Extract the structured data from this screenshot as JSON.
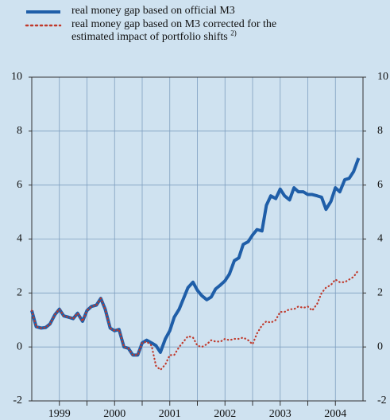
{
  "chart_data": {
    "type": "line",
    "legend_note": "2)",
    "x": [
      1999,
      1999.08,
      1999.17,
      1999.25,
      1999.33,
      1999.42,
      1999.5,
      1999.58,
      1999.67,
      1999.75,
      1999.83,
      1999.92,
      2000,
      2000.08,
      2000.17,
      2000.25,
      2000.33,
      2000.42,
      2000.5,
      2000.58,
      2000.67,
      2000.75,
      2000.83,
      2000.92,
      2001,
      2001.08,
      2001.17,
      2001.25,
      2001.33,
      2001.42,
      2001.5,
      2001.58,
      2001.67,
      2001.75,
      2001.83,
      2001.92,
      2002,
      2002.08,
      2002.17,
      2002.25,
      2002.33,
      2002.42,
      2002.5,
      2002.58,
      2002.67,
      2002.75,
      2002.83,
      2002.92,
      2003,
      2003.08,
      2003.17,
      2003.25,
      2003.33,
      2003.42,
      2003.5,
      2003.58,
      2003.67,
      2003.75,
      2003.83,
      2003.92,
      2004,
      2004.08,
      2004.17,
      2004.25,
      2004.33,
      2004.42,
      2004.5,
      2004.58,
      2004.67,
      2004.75,
      2004.83,
      2004.92
    ],
    "series": [
      {
        "name": "real money gap based on official M3",
        "color": "#1f5ea8",
        "style": "solid",
        "values": [
          1.35,
          0.75,
          0.7,
          0.72,
          0.85,
          1.2,
          1.4,
          1.15,
          1.1,
          1.05,
          1.25,
          0.95,
          1.35,
          1.5,
          1.55,
          1.8,
          1.4,
          0.7,
          0.6,
          0.65,
          0.0,
          -0.05,
          -0.3,
          -0.3,
          0.15,
          0.25,
          0.15,
          0.05,
          -0.2,
          0.3,
          0.6,
          1.1,
          1.4,
          1.8,
          2.2,
          2.4,
          2.1,
          1.9,
          1.75,
          1.85,
          2.15,
          2.3,
          2.45,
          2.7,
          3.2,
          3.3,
          3.8,
          3.9,
          4.15,
          4.35,
          4.3,
          5.25,
          5.6,
          5.5,
          5.85,
          5.6,
          5.45,
          5.9,
          5.75,
          5.75,
          5.65,
          5.65,
          5.6,
          5.55,
          5.1,
          5.4,
          5.9,
          5.75,
          6.2,
          6.25,
          6.5,
          7.0
        ]
      },
      {
        "name": "real money gap based on M3 corrected for the estimated impact of portfolio shifts",
        "color": "#c0392b",
        "style": "dotted",
        "values": [
          1.35,
          0.75,
          0.7,
          0.72,
          0.85,
          1.2,
          1.4,
          1.15,
          1.1,
          1.05,
          1.25,
          0.95,
          1.35,
          1.5,
          1.55,
          1.8,
          1.4,
          0.7,
          0.6,
          0.65,
          0.0,
          -0.05,
          -0.3,
          -0.3,
          0.15,
          0.2,
          0.05,
          -0.7,
          -0.85,
          -0.65,
          -0.3,
          -0.3,
          0.0,
          0.2,
          0.4,
          0.35,
          0.05,
          0.0,
          0.1,
          0.25,
          0.2,
          0.2,
          0.3,
          0.25,
          0.3,
          0.3,
          0.35,
          0.25,
          0.1,
          0.5,
          0.8,
          0.95,
          0.9,
          1.0,
          1.3,
          1.3,
          1.4,
          1.4,
          1.5,
          1.45,
          1.5,
          1.35,
          1.6,
          2.0,
          2.2,
          2.3,
          2.5,
          2.4,
          2.4,
          2.5,
          2.6,
          2.85
        ]
      }
    ],
    "xlim": [
      1999,
      2005
    ],
    "xticks": [
      {
        "value": 1999.5,
        "label": "1999"
      },
      {
        "value": 2000.5,
        "label": "2000"
      },
      {
        "value": 2001.5,
        "label": "2001"
      },
      {
        "value": 2002.5,
        "label": "2002"
      },
      {
        "value": 2003.5,
        "label": "2003"
      },
      {
        "value": 2004.5,
        "label": "2004"
      }
    ],
    "xgrid": [
      1999.5,
      2000,
      2000.5,
      2001,
      2001.5,
      2002,
      2002.5,
      2003,
      2003.5,
      2004,
      2004.5
    ],
    "ylim": [
      -2,
      10
    ],
    "yticks": [
      -2,
      0,
      2,
      4,
      6,
      8,
      10
    ],
    "grid": true
  }
}
